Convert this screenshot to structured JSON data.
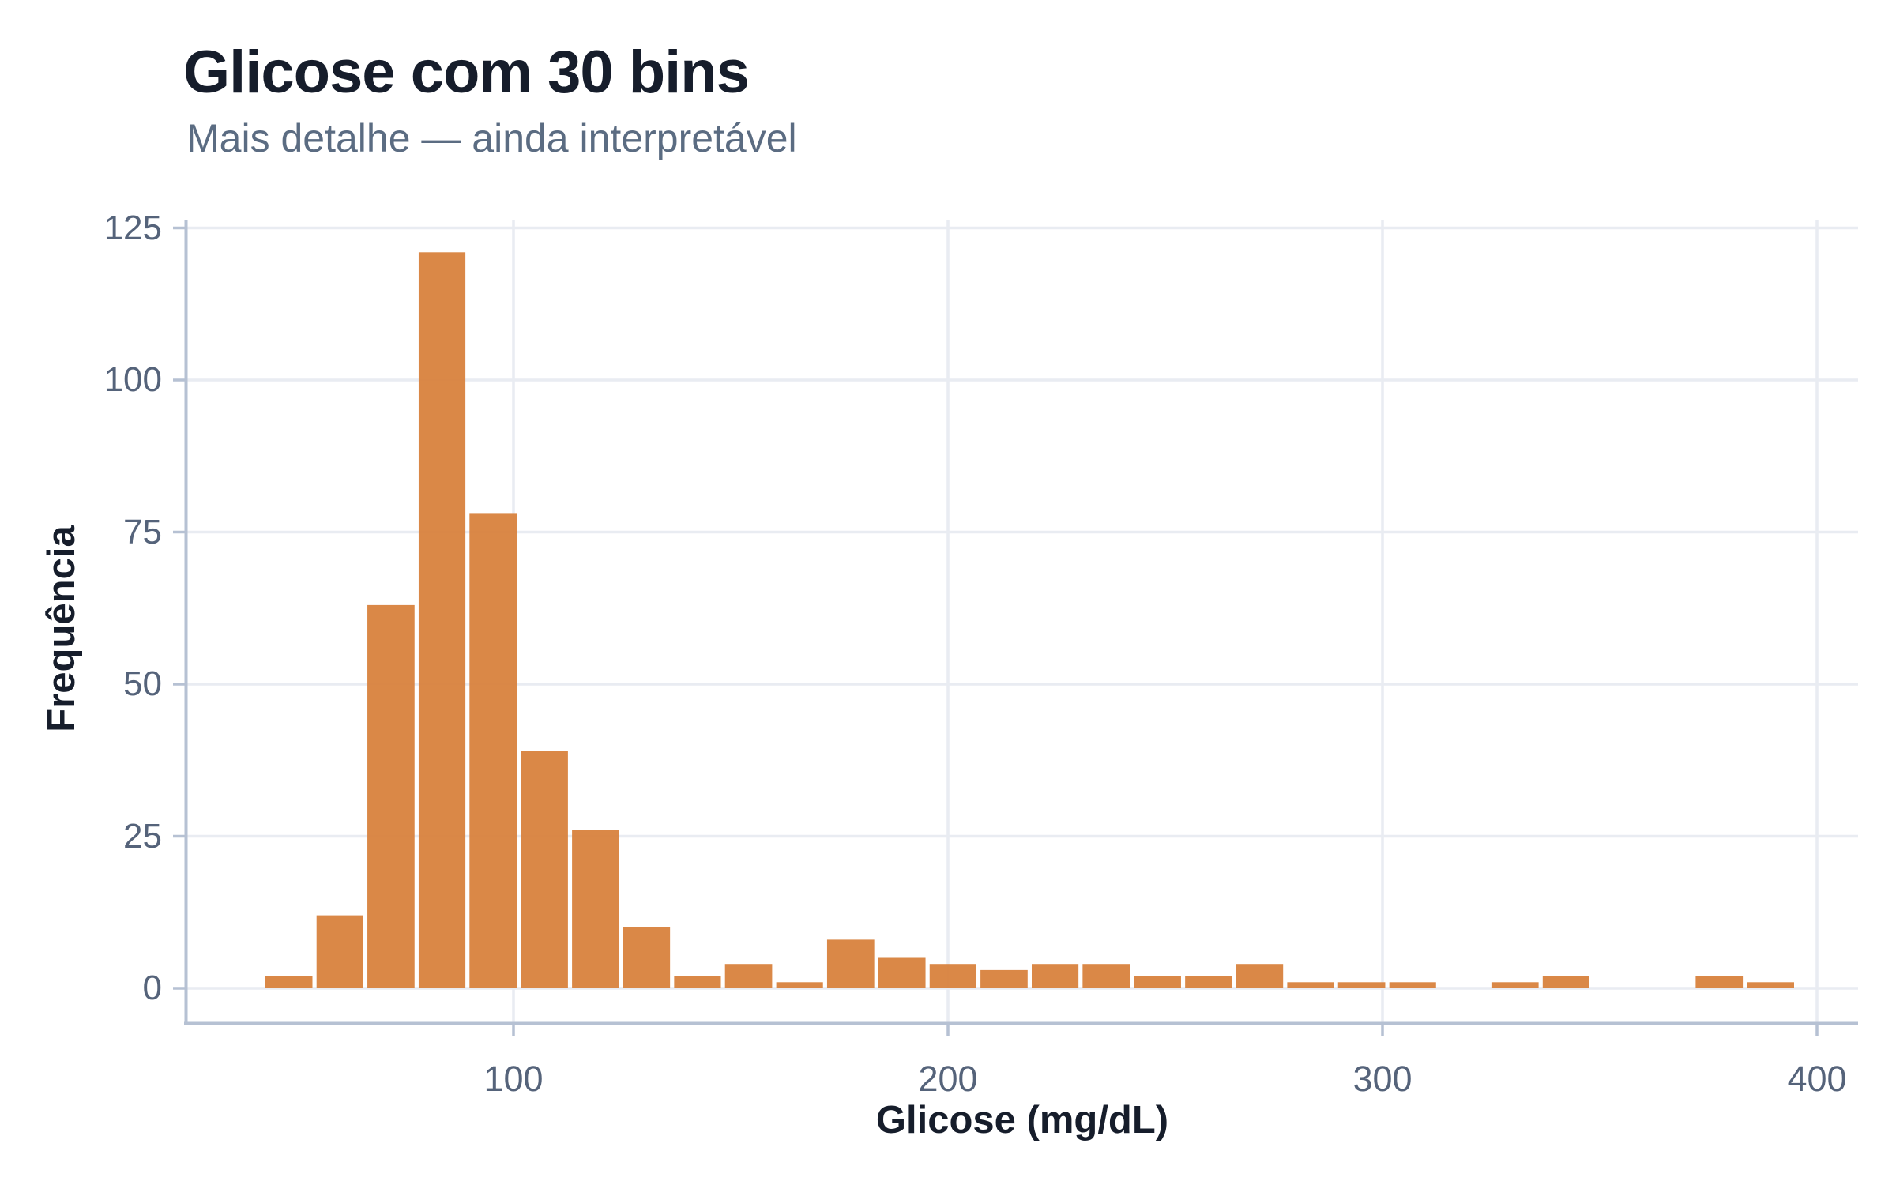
{
  "chart_data": {
    "type": "bar",
    "chart_kind": "histogram",
    "title": "Glicose com 30 bins",
    "subtitle": "Mais detalhe — ainda interpretável",
    "xlabel": "Glicose (mg/dL)",
    "ylabel": "Frequência",
    "n_bins": 30,
    "bin_edges": [
      42.4,
      54.2,
      65.9,
      77.7,
      89.4,
      101.2,
      113.0,
      124.7,
      136.5,
      148.2,
      160.0,
      171.7,
      183.5,
      195.3,
      207.0,
      218.8,
      230.5,
      242.3,
      254.1,
      265.8,
      277.6,
      289.3,
      301.1,
      312.8,
      324.6,
      336.4,
      348.1,
      359.9,
      371.6,
      383.4,
      395.2
    ],
    "counts": [
      2,
      12,
      63,
      121,
      78,
      39,
      26,
      10,
      2,
      4,
      1,
      8,
      5,
      4,
      3,
      4,
      4,
      2,
      2,
      4,
      1,
      1,
      1,
      0,
      1,
      2,
      0,
      0,
      2,
      1
    ],
    "x_ticks": [
      100,
      200,
      300,
      400
    ],
    "y_ticks": [
      0,
      25,
      50,
      75,
      100,
      125
    ],
    "xlim": [
      24.9,
      409.5
    ],
    "ylim": [
      -5.7,
      126.4
    ],
    "grid": true,
    "legend": false
  },
  "colors": {
    "bar_fill": "#D8823D",
    "title_text": "#161D2B",
    "subtitle_text": "#5B6C82",
    "tick_label_text": "#55637A",
    "gridline": "#E9ECF2",
    "axis_line": "#B6C1D3",
    "background": "#FFFFFF"
  }
}
